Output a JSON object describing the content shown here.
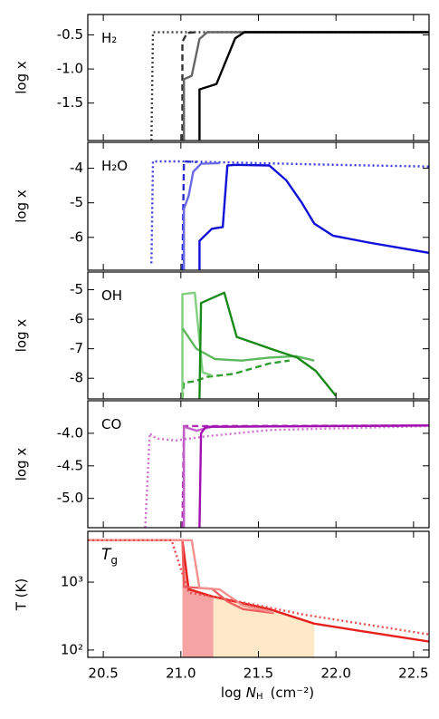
{
  "chart_data": [
    {
      "type": "line",
      "label": "H₂",
      "ylabel": "log x",
      "ylim": [
        -2.05,
        -0.2
      ],
      "yticks": [
        -0.5,
        {
          "value": -1,
          "label": "-1.0"
        },
        -1.5
      ],
      "series": [
        {
          "color": "#444444",
          "dash": "dotted",
          "x": [
            20.81,
            20.82,
            22.6
          ],
          "values": [
            -2.05,
            -0.46,
            -0.46
          ]
        },
        {
          "color": "#333333",
          "dash": "dashed",
          "x": [
            21.01,
            21.01,
            21.04,
            21.1
          ],
          "values": [
            -2.05,
            -0.6,
            -0.47,
            -0.46
          ]
        },
        {
          "color": "#666666",
          "dash": "solid",
          "x": [
            21.02,
            21.02,
            21.07,
            21.12,
            21.17,
            22.6
          ],
          "values": [
            -2.05,
            -1.15,
            -1.1,
            -0.56,
            -0.46,
            -0.46
          ]
        },
        {
          "color": "#000000",
          "dash": "solid",
          "x": [
            21.12,
            21.12,
            21.23,
            21.35,
            21.41,
            22.6
          ],
          "values": [
            -2.05,
            -1.3,
            -1.22,
            -0.55,
            -0.46,
            -0.46
          ]
        }
      ]
    },
    {
      "type": "line",
      "label": "H₂O",
      "ylabel": "log x",
      "ylim": [
        -6.95,
        -3.25
      ],
      "yticks": [
        -4,
        -5,
        -6
      ],
      "series": [
        {
          "color": "#3b3bdc",
          "dash": "dotted",
          "x": [
            20.81,
            20.82,
            21.0,
            21.5,
            22.0,
            22.6
          ],
          "values": [
            -6.75,
            -3.8,
            -3.8,
            -3.85,
            -3.9,
            -3.95
          ]
        },
        {
          "color": "#2a2ad0",
          "dash": "dashed",
          "x": [
            21.01,
            21.02,
            21.1
          ],
          "values": [
            -6.95,
            -3.8,
            -3.82
          ]
        },
        {
          "color": "#6a6ae8",
          "dash": "solid",
          "x": [
            21.02,
            21.02,
            21.05,
            21.08,
            21.13,
            21.25
          ],
          "values": [
            -6.95,
            -5.17,
            -4.8,
            -4.1,
            -3.87,
            -3.85
          ]
        },
        {
          "color": "#1010d8",
          "dash": "solid",
          "x": [
            21.12,
            21.12,
            21.2,
            21.27,
            21.3,
            21.35,
            21.57,
            21.68,
            21.78,
            21.86,
            21.98,
            22.21,
            22.6
          ],
          "values": [
            -6.95,
            -6.1,
            -5.75,
            -5.7,
            -3.92,
            -3.9,
            -3.92,
            -4.35,
            -5.0,
            -5.6,
            -5.95,
            -6.15,
            -6.45
          ]
        }
      ]
    },
    {
      "type": "line",
      "label": "OH",
      "ylabel": "log x",
      "ylim": [
        -8.7,
        -4.4
      ],
      "yticks": [
        -5,
        -6,
        -7,
        -8
      ],
      "series": [
        {
          "color": "#2e9e2e",
          "dash": "dashed",
          "x": [
            21.01,
            21.02,
            21.09,
            21.17,
            21.34,
            21.57,
            21.7
          ],
          "values": [
            -8.7,
            -8.15,
            -8.1,
            -7.95,
            -7.85,
            -7.5,
            -7.4
          ]
        },
        {
          "color": "#7fcf7f",
          "dash": "solid",
          "x": [
            21.01,
            21.01,
            21.09,
            21.14,
            21.2
          ],
          "values": [
            -8.7,
            -5.15,
            -5.1,
            -7.8,
            -7.9
          ]
        },
        {
          "color": "#5cb85c",
          "dash": "solid",
          "x": [
            21.01,
            21.1,
            21.22,
            21.39,
            21.57,
            21.74,
            21.86
          ],
          "values": [
            -6.3,
            -7.0,
            -7.35,
            -7.4,
            -7.3,
            -7.25,
            -7.4
          ]
        },
        {
          "color": "#188a18",
          "dash": "solid",
          "x": [
            21.12,
            21.13,
            21.28,
            21.36,
            21.47,
            21.58,
            21.75,
            21.87,
            22.0
          ],
          "values": [
            -8.7,
            -5.45,
            -5.1,
            -6.6,
            -6.8,
            -7.0,
            -7.3,
            -7.75,
            -8.6
          ]
        }
      ]
    },
    {
      "type": "line",
      "label": "CO",
      "ylabel": "log x",
      "ylim": [
        -5.45,
        -3.5
      ],
      "yticks": [
        {
          "value": -4,
          "label": "-4.0"
        },
        -4.5,
        {
          "value": -5,
          "label": "-5.0"
        }
      ],
      "series": [
        {
          "color": "#d070d0",
          "dash": "dotted",
          "x": [
            20.77,
            20.8,
            20.84,
            20.97,
            21.15,
            21.57,
            22.6
          ],
          "values": [
            -5.45,
            -4.0,
            -4.08,
            -4.11,
            -4.05,
            -3.95,
            -3.89
          ]
        },
        {
          "color": "#b030b0",
          "dash": "dashed",
          "x": [
            21.01,
            21.02,
            22.6
          ],
          "values": [
            -5.45,
            -3.89,
            -3.88
          ]
        },
        {
          "color": "#c060c8",
          "dash": "solid",
          "x": [
            21.02,
            21.02,
            21.1,
            21.2,
            22.6
          ],
          "values": [
            -5.45,
            -3.9,
            -3.96,
            -3.9,
            -3.88
          ]
        },
        {
          "color": "#a010b0",
          "dash": "solid",
          "x": [
            21.12,
            21.13,
            21.16,
            22.6
          ],
          "values": [
            -5.45,
            -4.0,
            -3.9,
            -3.88
          ]
        }
      ]
    },
    {
      "type": "line",
      "label": "T",
      "label_sub": "g",
      "ylabel": "T (K)",
      "log_y": true,
      "ylim": [
        78,
        5600
      ],
      "yticks": [
        {
          "value": 100,
          "label": "10²"
        },
        {
          "value": 1000,
          "label": "10³"
        }
      ],
      "xlim": [
        20.4,
        22.6
      ],
      "xticks": [
        20.5,
        {
          "value": 21,
          "label": "21.0"
        },
        21.5,
        {
          "value": 22,
          "label": "22.0"
        },
        22.5
      ],
      "xlabel": {
        "prefix": "log",
        "var": "N",
        "sub": "H",
        "unit": "(cm⁻²)"
      },
      "shaded": [
        {
          "x": [
            21.01,
            21.21
          ],
          "color": "#f5a3a3"
        },
        {
          "x": [
            21.21,
            21.86
          ],
          "color": "#fde8c8"
        }
      ],
      "series": [
        {
          "color": "#e8201c",
          "dash": "solid",
          "x": [
            20.4,
            21.01,
            21.05,
            21.2,
            21.57,
            21.86,
            22.15,
            22.6
          ],
          "values": [
            4140,
            4140,
            788,
            617,
            401,
            245,
            192,
            133
          ]
        },
        {
          "color": "#f06060",
          "dash": "solid",
          "x": [
            20.4,
            21.01,
            21.02,
            21.2,
            21.3,
            21.4,
            21.6
          ],
          "values": [
            4140,
            4140,
            850,
            800,
            520,
            400,
            350
          ]
        },
        {
          "color": "#f49090",
          "dash": "solid",
          "x": [
            20.4,
            21.07,
            21.12,
            21.25,
            21.4,
            21.6
          ],
          "values": [
            4140,
            4140,
            820,
            780,
            450,
            360
          ]
        },
        {
          "color": "#e85050",
          "dash": "dotted",
          "x": [
            20.4,
            20.94,
            21.05,
            21.3,
            21.8,
            22.6
          ],
          "values": [
            4140,
            4140,
            700,
            560,
            330,
            170
          ]
        }
      ]
    }
  ]
}
